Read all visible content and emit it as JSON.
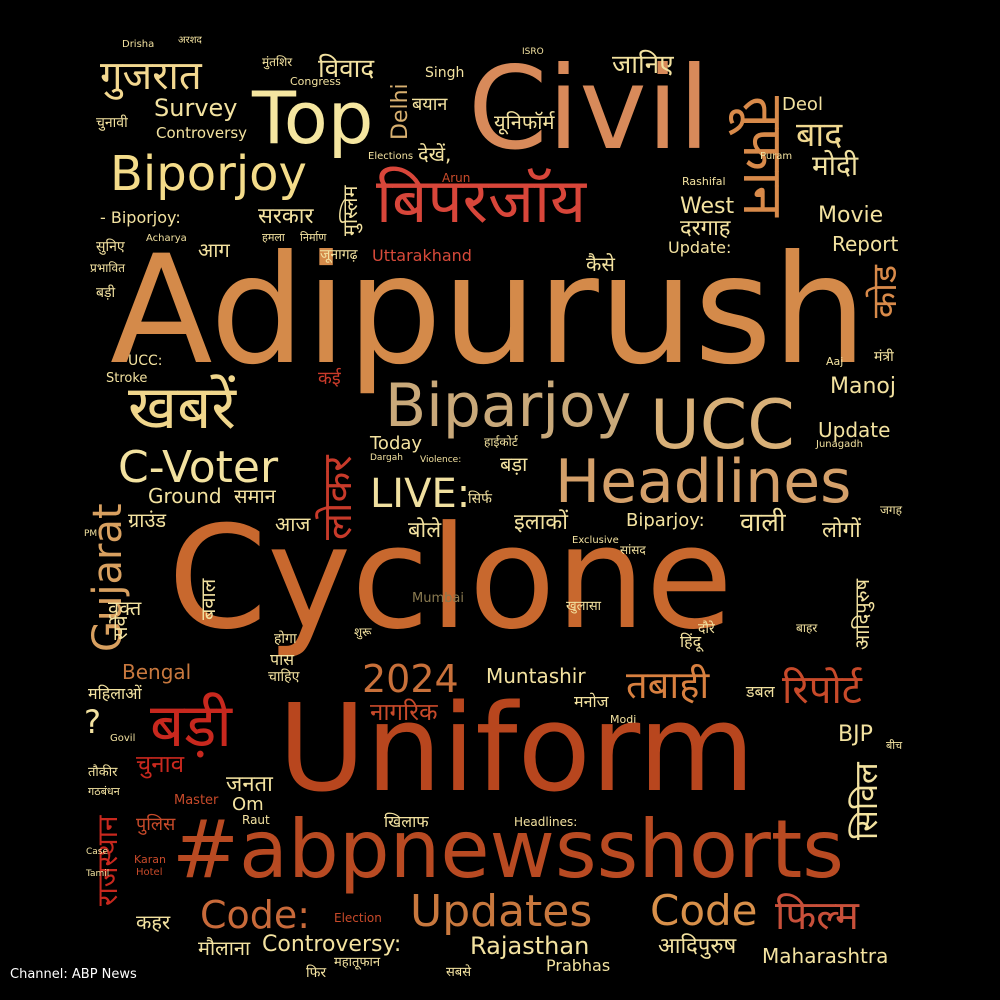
{
  "caption": "Channel: ABP News",
  "colors": {
    "background": "#000000",
    "caption": "#ffffff"
  },
  "words": [
    {
      "text": "Adipurush",
      "color": "#d48a4a"
    },
    {
      "text": "Cyclone",
      "color": "#c8682e"
    },
    {
      "text": "Uniform",
      "color": "#b8461e"
    },
    {
      "text": "#abpnewsshorts",
      "color": "#b84a22"
    },
    {
      "text": "Civil",
      "color": "#d88a5a"
    },
    {
      "text": "Top",
      "color": "#f5e6a0"
    },
    {
      "text": "Biparjoy",
      "color": "#c9a97a"
    },
    {
      "text": "Headlines",
      "color": "#d4a06a"
    },
    {
      "text": "UCC",
      "color": "#d8b078"
    },
    {
      "text": "Biporjoy",
      "color": "#f4dc8a"
    },
    {
      "text": "बिपरजॉय",
      "color": "#d8463a"
    },
    {
      "text": "खबरें",
      "color": "#f0d68c"
    },
    {
      "text": "गुजरात",
      "color": "#f3d890"
    },
    {
      "text": "तूफान",
      "color": "#d88a4a"
    },
    {
      "text": "C-Voter",
      "color": "#f3e2a0"
    },
    {
      "text": "Gujarat",
      "color": "#d8a060"
    },
    {
      "text": "बड़ी",
      "color": "#c8281e"
    },
    {
      "text": "LIVE:",
      "color": "#f0e0a0"
    },
    {
      "text": "2024",
      "color": "#c8703a"
    },
    {
      "text": "Updates",
      "color": "#c8783e"
    },
    {
      "text": "Code:",
      "color": "#c86a3a"
    },
    {
      "text": "Code",
      "color": "#d8904a"
    },
    {
      "text": "फिल्म",
      "color": "#c8503a"
    },
    {
      "text": "तबाही",
      "color": "#d88040"
    },
    {
      "text": "रिपोर्ट",
      "color": "#c84a2a"
    },
    {
      "text": "लोकर",
      "color": "#c83a2a"
    },
    {
      "text": "बाद",
      "color": "#f0d890"
    },
    {
      "text": "मोदी",
      "color": "#f0e0a0"
    },
    {
      "text": "विवाद",
      "color": "#f3e2a0"
    },
    {
      "text": "जानिए",
      "color": "#f3e2a0"
    },
    {
      "text": "Survey",
      "color": "#f3e2a0"
    },
    {
      "text": "Controversy",
      "color": "#f3e2a0"
    },
    {
      "text": "Delhi",
      "color": "#d8b070"
    },
    {
      "text": "सरकार",
      "color": "#f3e2a0"
    },
    {
      "text": "West",
      "color": "#f3e2a0"
    },
    {
      "text": "दरगाह",
      "color": "#f3e2a0"
    },
    {
      "text": "Movie",
      "color": "#f3e2a0"
    },
    {
      "text": "Report",
      "color": "#f3e2a0"
    },
    {
      "text": "Update:",
      "color": "#f3e2a0"
    },
    {
      "text": "कैसे",
      "color": "#f3e2a0"
    },
    {
      "text": "Uttarakhand",
      "color": "#d84a3a"
    },
    {
      "text": "कोड",
      "color": "#d88a4a"
    },
    {
      "text": "Manoj",
      "color": "#f3e2a0"
    },
    {
      "text": "Update",
      "color": "#f3e2a0"
    },
    {
      "text": "कई",
      "color": "#c83a2a"
    },
    {
      "text": "Today",
      "color": "#f3e2a0"
    },
    {
      "text": "बड़ा",
      "color": "#f3e2a0"
    },
    {
      "text": "इलाकों",
      "color": "#f3e2a0"
    },
    {
      "text": "Biparjoy:",
      "color": "#f3e2a0"
    },
    {
      "text": "वाली",
      "color": "#f3e2a0"
    },
    {
      "text": "लोगों",
      "color": "#f3e2a0"
    },
    {
      "text": "Ground",
      "color": "#f3e2a0"
    },
    {
      "text": "समान",
      "color": "#f3e2a0"
    },
    {
      "text": "ग्राउंड",
      "color": "#f3e2a0"
    },
    {
      "text": "आज",
      "color": "#f3e2a0"
    },
    {
      "text": "बोले",
      "color": "#f3e2a0"
    },
    {
      "text": "सर्वे",
      "color": "#f3e2a0"
    },
    {
      "text": "वक्त",
      "color": "#f3e2a0"
    },
    {
      "text": "बवाल",
      "color": "#f3e2a0"
    },
    {
      "text": "Bengal",
      "color": "#c8783e"
    },
    {
      "text": "महिलाओं",
      "color": "#f3e2a0"
    },
    {
      "text": "Muntashir",
      "color": "#f3e2a0"
    },
    {
      "text": "नागरिक",
      "color": "#c84a2a"
    },
    {
      "text": "चुनाव",
      "color": "#c8281e"
    },
    {
      "text": "जनता",
      "color": "#f3e2a0"
    },
    {
      "text": "Om",
      "color": "#f3e2a0"
    },
    {
      "text": "BJP",
      "color": "#f3e2a0"
    },
    {
      "text": "सिविल",
      "color": "#f3e2a0"
    },
    {
      "text": "राजस्थान",
      "color": "#c8281e"
    },
    {
      "text": "कहर",
      "color": "#f3e2a0"
    },
    {
      "text": "मौलाना",
      "color": "#f3e2a0"
    },
    {
      "text": "Controversy:",
      "color": "#f3e2a0"
    },
    {
      "text": "Rajasthan",
      "color": "#f3e2a0"
    },
    {
      "text": "आदिपुरुष",
      "color": "#f3e2a0"
    },
    {
      "text": "Maharashtra",
      "color": "#f3e2a0"
    },
    {
      "text": "Prabhas",
      "color": "#f3e2a0"
    },
    {
      "text": "आदिपुरुष",
      "color": "#f3e2a0"
    },
    {
      "text": "?",
      "color": "#f3e2a0"
    },
    {
      "text": "पुलिस",
      "color": "#c84a2a"
    },
    {
      "text": "देखें,",
      "color": "#f3e2a0"
    },
    {
      "text": "यूनिफॉर्म",
      "color": "#f3e2a0"
    },
    {
      "text": "मुस्लिम",
      "color": "#f3e2a0"
    },
    {
      "text": "आग",
      "color": "#f3e2a0"
    },
    {
      "text": "Deol",
      "color": "#f3e2a0"
    },
    {
      "text": "Singh",
      "color": "#f3e2a0"
    },
    {
      "text": "बयान",
      "color": "#f3e2a0"
    },
    {
      "text": "चुनावी",
      "color": "#f3e2a0"
    },
    {
      "text": "- Biporjoy:",
      "color": "#f3e2a0"
    },
    {
      "text": "UCC:",
      "color": "#f3e2a0"
    },
    {
      "text": "Stroke",
      "color": "#f3e2a0"
    },
    {
      "text": "Drisha",
      "color": "#f3e2a0"
    },
    {
      "text": "अरशद",
      "color": "#f3e2a0"
    },
    {
      "text": "ISRO",
      "color": "#f3e2a0"
    },
    {
      "text": "मुंतशिर",
      "color": "#f3e2a0"
    },
    {
      "text": "Congress",
      "color": "#f3e2a0"
    },
    {
      "text": "Elections",
      "color": "#f3e2a0"
    },
    {
      "text": "सुनिए",
      "color": "#f3e2a0"
    },
    {
      "text": "प्रभावित",
      "color": "#f3e2a0"
    },
    {
      "text": "Acharya",
      "color": "#f3e2a0"
    },
    {
      "text": "बड़ी",
      "color": "#f3e2a0"
    },
    {
      "text": "जूनागढ़",
      "color": "#f3e2a0"
    },
    {
      "text": "हमला",
      "color": "#f3e2a0"
    },
    {
      "text": "निर्माण",
      "color": "#f3e2a0"
    },
    {
      "text": "Arun",
      "color": "#c84a2a"
    },
    {
      "text": "Puram",
      "color": "#f3e2a0"
    },
    {
      "text": "Rashifal",
      "color": "#f3e2a0"
    },
    {
      "text": "Dargah",
      "color": "#f3e2a0"
    },
    {
      "text": "Violence:",
      "color": "#f3e2a0"
    },
    {
      "text": "सिर्फ",
      "color": "#f3e2a0"
    },
    {
      "text": "हाईकोर्ट",
      "color": "#f3e2a0"
    },
    {
      "text": "Exclusive",
      "color": "#f3e2a0"
    },
    {
      "text": "सांसद",
      "color": "#f3e2a0"
    },
    {
      "text": "Mumbai",
      "color": "#8a7a50"
    },
    {
      "text": "खुलासा",
      "color": "#f3e2a0"
    },
    {
      "text": "होगा",
      "color": "#f3e2a0"
    },
    {
      "text": "शुरू",
      "color": "#f3e2a0"
    },
    {
      "text": "पास",
      "color": "#f3e2a0"
    },
    {
      "text": "चाहिए",
      "color": "#f3e2a0"
    },
    {
      "text": "मनोज",
      "color": "#f3e2a0"
    },
    {
      "text": "डबल",
      "color": "#f3e2a0"
    },
    {
      "text": "Modi",
      "color": "#f3e2a0"
    },
    {
      "text": "Master",
      "color": "#c84a2a"
    },
    {
      "text": "Raut",
      "color": "#f3e2a0"
    },
    {
      "text": "Headlines:",
      "color": "#f3e2a0"
    },
    {
      "text": "खिलाफ",
      "color": "#f3e2a0"
    },
    {
      "text": "Election",
      "color": "#c84a2a"
    },
    {
      "text": "फिर",
      "color": "#f3e2a0"
    },
    {
      "text": "महातूफान",
      "color": "#f3e2a0"
    },
    {
      "text": "सबसे",
      "color": "#f3e2a0"
    },
    {
      "text": "Karan",
      "color": "#c84a2a"
    },
    {
      "text": "Hotel",
      "color": "#c84a2a"
    },
    {
      "text": "तौकीर",
      "color": "#f3e2a0"
    },
    {
      "text": "गठबंधन",
      "color": "#f3e2a0"
    },
    {
      "text": "Govil",
      "color": "#f3e2a0"
    },
    {
      "text": "हिंदू",
      "color": "#f3e2a0"
    },
    {
      "text": "दौरे",
      "color": "#f3e2a0"
    },
    {
      "text": "बाहर",
      "color": "#f3e2a0"
    },
    {
      "text": "मंत्री",
      "color": "#f3e2a0"
    },
    {
      "text": "Aaj",
      "color": "#f3e2a0"
    },
    {
      "text": "Junagadh",
      "color": "#f3e2a0"
    },
    {
      "text": "जगह",
      "color": "#f3e2a0"
    },
    {
      "text": "बीच",
      "color": "#f3e2a0"
    },
    {
      "text": "PM",
      "color": "#f3e2a0"
    },
    {
      "text": "Case",
      "color": "#f3e2a0"
    },
    {
      "text": "Tamil",
      "color": "#f3e2a0"
    }
  ]
}
